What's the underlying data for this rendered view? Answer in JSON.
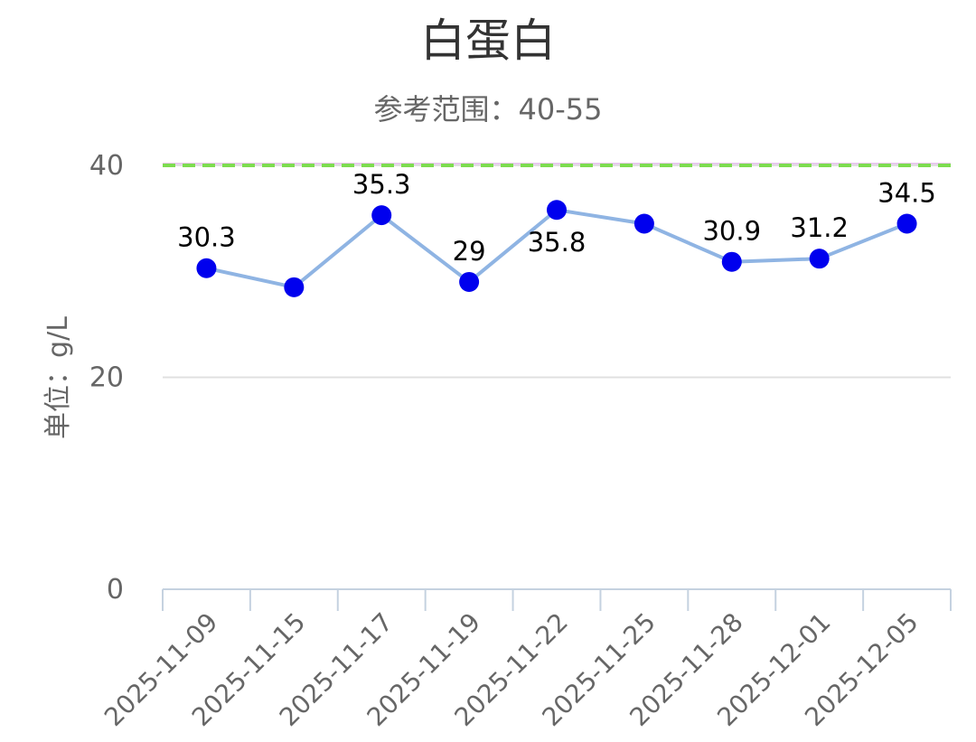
{
  "chart_data": {
    "type": "line",
    "title": "白蛋白",
    "subtitle": "参考范围：40-55",
    "ylabel": "单位：g/L",
    "xlabel": "",
    "categories": [
      "2025-11-09",
      "2025-11-15",
      "2025-11-17",
      "2025-11-19",
      "2025-11-22",
      "2025-11-25",
      "2025-11-28",
      "2025-12-01",
      "2025-12-05"
    ],
    "series": [
      {
        "values": [
          30.3,
          28.5,
          35.3,
          29,
          35.8,
          34.5,
          30.9,
          31.2,
          34.5
        ],
        "data_labels": [
          "30.3",
          "",
          "35.3",
          "29",
          "35.8",
          "",
          "30.9",
          "31.2",
          "34.5"
        ],
        "line_color": "#8fb4e3",
        "marker_color": "#0000ee"
      }
    ],
    "ylim": [
      0,
      40
    ],
    "yticks": [
      "0",
      "20",
      "40"
    ],
    "ytick_values": [
      0,
      20,
      40
    ],
    "reference_line": {
      "value": 40,
      "color": "#7ddc4f",
      "style": "dashed"
    },
    "grid": true,
    "legend": "none"
  }
}
